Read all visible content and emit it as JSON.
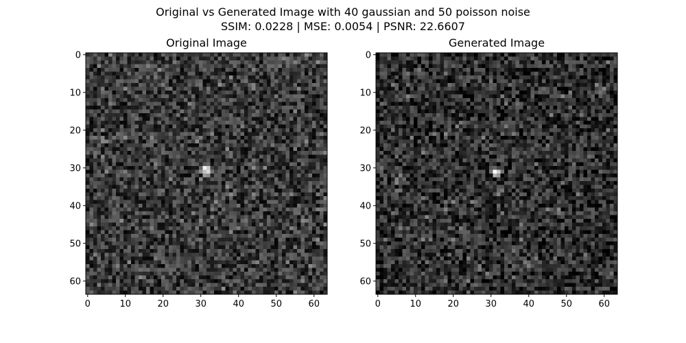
{
  "suptitle": {
    "line1": "Original vs Generated Image with 40 gaussian and 50 poisson noise",
    "line2": "SSIM: 0.0228 | MSE: 0.0054 | PSNR: 22.6607"
  },
  "chart_data": [
    {
      "type": "heatmap",
      "title": "Original Image",
      "colormap": "gray",
      "grid": false,
      "shape": [
        64,
        64
      ],
      "xlim": [
        -0.5,
        63.5
      ],
      "ylim": [
        63.5,
        -0.5
      ],
      "xticks": [
        0,
        10,
        20,
        30,
        40,
        50,
        60
      ],
      "yticks": [
        0,
        10,
        20,
        30,
        40,
        50,
        60
      ],
      "background_mean": 0.22,
      "background_spread": 0.2,
      "hotspot": {
        "center": [
          31.5,
          31.5
        ],
        "peak": 0.85
      },
      "hotspot_pixels": [
        {
          "x": 31,
          "y": 30,
          "v": 0.95
        },
        {
          "x": 32,
          "y": 30,
          "v": 0.8
        },
        {
          "x": 31,
          "y": 31,
          "v": 0.75
        },
        {
          "x": 32,
          "y": 31,
          "v": 0.85
        },
        {
          "x": 30,
          "y": 31,
          "v": 0.55
        },
        {
          "x": 31,
          "y": 32,
          "v": 0.6
        },
        {
          "x": 32,
          "y": 32,
          "v": 0.55
        },
        {
          "x": 33,
          "y": 31,
          "v": 0.45
        }
      ]
    },
    {
      "type": "heatmap",
      "title": "Generated Image",
      "colormap": "gray",
      "grid": false,
      "shape": [
        64,
        64
      ],
      "xlim": [
        -0.5,
        63.5
      ],
      "ylim": [
        63.5,
        -0.5
      ],
      "xticks": [
        0,
        10,
        20,
        30,
        40,
        50,
        60
      ],
      "yticks": [
        0,
        10,
        20,
        30,
        40,
        50,
        60
      ],
      "background_mean": 0.18,
      "background_spread": 0.2,
      "hotspot": {
        "center": [
          31.5,
          31.5
        ],
        "peak": 0.9
      },
      "hotspot_pixels": [
        {
          "x": 31,
          "y": 31,
          "v": 1.0
        },
        {
          "x": 32,
          "y": 31,
          "v": 0.8
        },
        {
          "x": 31,
          "y": 32,
          "v": 0.7
        },
        {
          "x": 32,
          "y": 32,
          "v": 0.6
        },
        {
          "x": 30,
          "y": 31,
          "v": 0.45
        },
        {
          "x": 33,
          "y": 31,
          "v": 0.45
        },
        {
          "x": 31,
          "y": 30,
          "v": 0.4
        }
      ]
    }
  ]
}
